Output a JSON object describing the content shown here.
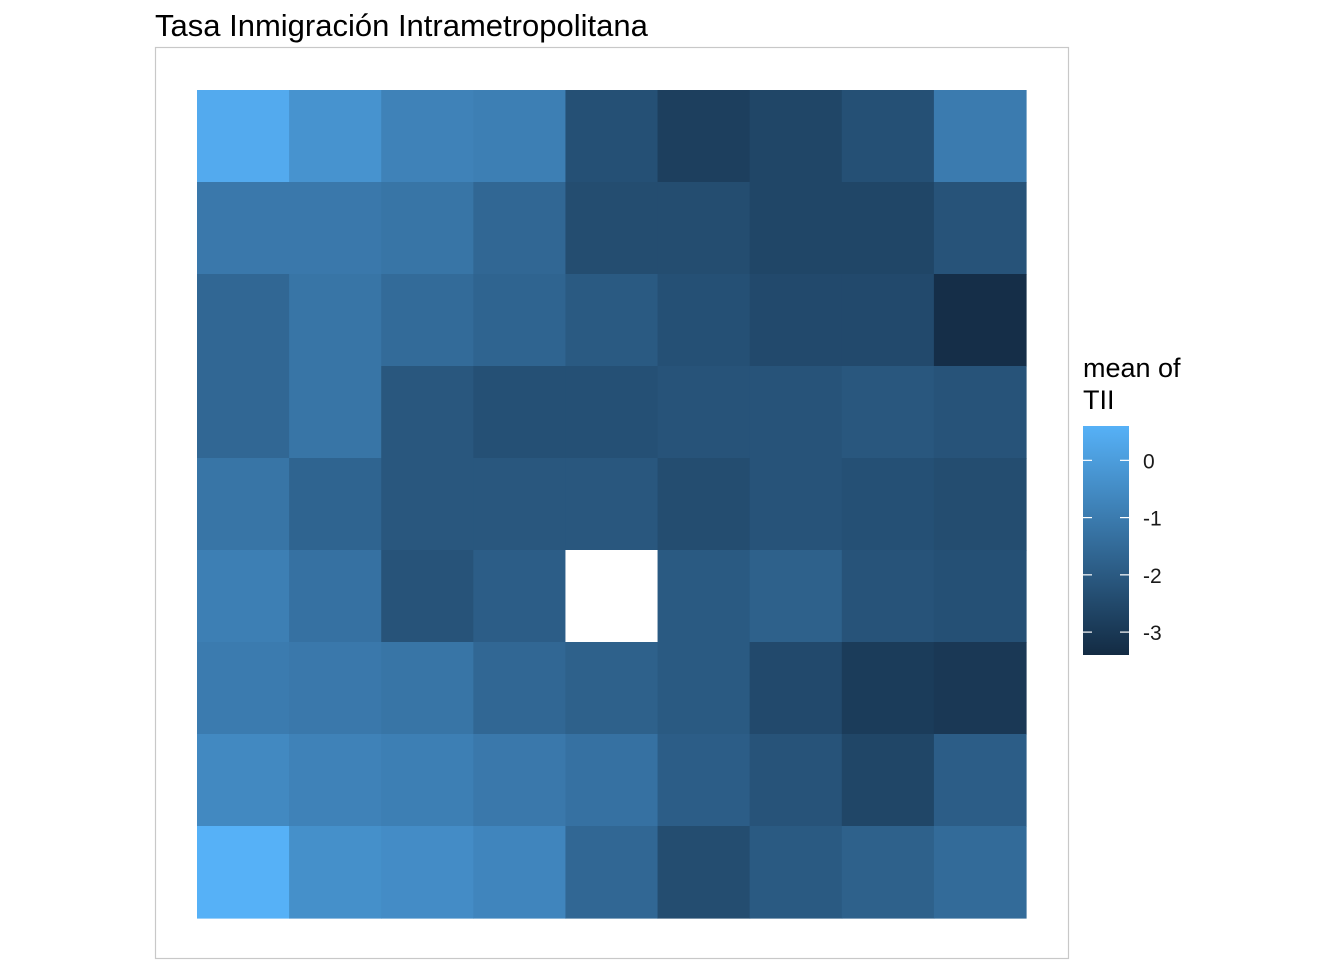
{
  "chart_data": {
    "type": "heatmap",
    "title": "Tasa Inmigración Intrametropolitana",
    "nrows": 9,
    "ncols": 9,
    "values": [
      [
        0.4,
        -0.3,
        -0.8,
        -0.9,
        -2.3,
        -2.8,
        -2.6,
        -2.3,
        -1.0
      ],
      [
        -1.1,
        -1.1,
        -1.2,
        -1.6,
        -2.4,
        -2.4,
        -2.6,
        -2.6,
        -2.2
      ],
      [
        -1.6,
        -1.2,
        -1.5,
        -1.7,
        -2.0,
        -2.3,
        -2.5,
        -2.5,
        -3.3
      ],
      [
        -1.6,
        -1.2,
        -2.1,
        -2.3,
        -2.3,
        -2.2,
        -2.2,
        -2.1,
        -2.2
      ],
      [
        -1.2,
        -1.7,
        -2.1,
        -2.1,
        -2.1,
        -2.4,
        -2.2,
        -2.3,
        -2.4
      ],
      [
        -0.9,
        -1.3,
        -2.2,
        -1.9,
        null,
        -2.0,
        -1.8,
        -2.2,
        -2.3
      ],
      [
        -1.0,
        -1.1,
        -1.2,
        -1.6,
        -1.8,
        -2.0,
        -2.5,
        -2.9,
        -3.0
      ],
      [
        -0.6,
        -0.8,
        -0.9,
        -1.1,
        -1.3,
        -1.9,
        -2.2,
        -2.6,
        -1.9
      ],
      [
        0.6,
        -0.4,
        -0.5,
        -0.7,
        -1.6,
        -2.4,
        -2.0,
        -1.8,
        -1.5
      ]
    ],
    "missing_color": "#ffffff",
    "color_scale": {
      "low": "#132b43",
      "high": "#56b1f7",
      "min": -3.4,
      "max": 0.6
    },
    "legend": {
      "title_lines": [
        "mean of",
        "TII"
      ],
      "ticks": [
        0,
        -1,
        -2,
        -3
      ],
      "tick_labels": [
        "0",
        "-1",
        "-2",
        "-3"
      ],
      "position": "right"
    },
    "panel_border_color": "#c8c8c8",
    "grid": false
  }
}
